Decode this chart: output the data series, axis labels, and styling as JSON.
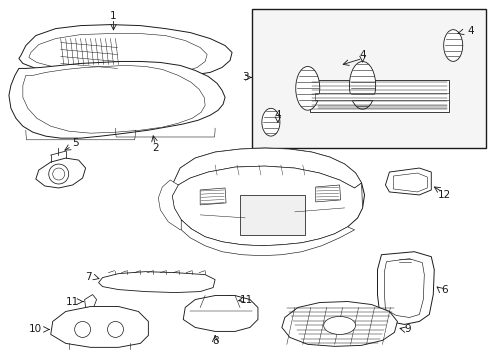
{
  "background_color": "#ffffff",
  "line_color": "#1a1a1a",
  "fig_width": 4.89,
  "fig_height": 3.6,
  "dpi": 100,
  "font_size": 7.5,
  "lw": 0.65
}
